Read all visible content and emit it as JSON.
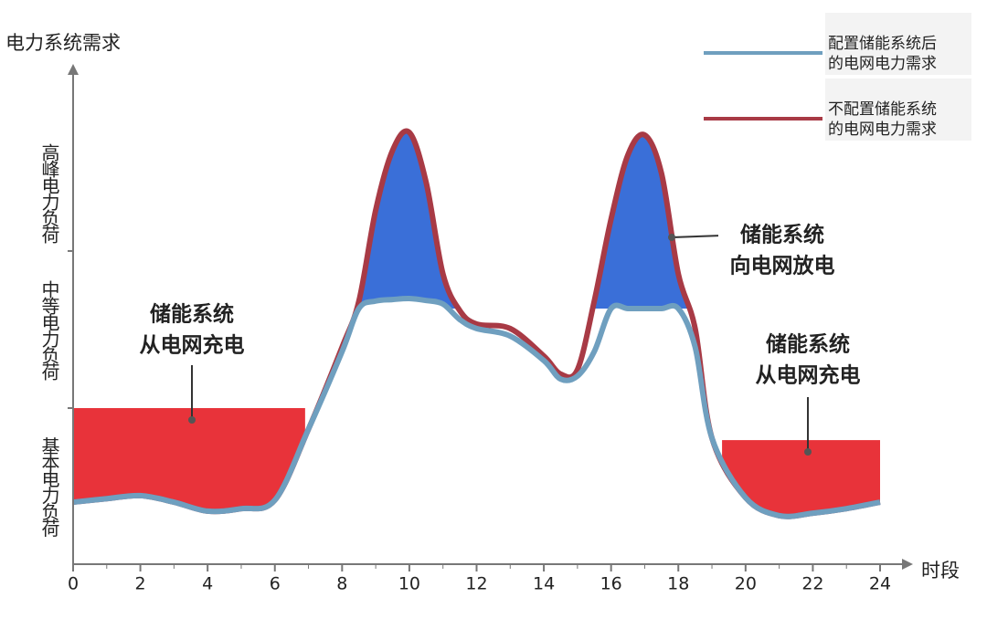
{
  "chart_data": {
    "type": "line",
    "y_label": "电力系统需求",
    "x_label": "时段",
    "x": [
      0,
      1,
      2,
      3,
      4,
      5,
      6,
      7,
      8,
      8.5,
      9,
      9.5,
      10,
      10.5,
      11,
      11.5,
      12,
      13,
      14,
      14.5,
      15,
      15.5,
      16,
      16.5,
      17,
      17.5,
      18,
      18.5,
      19,
      20,
      21,
      22,
      23,
      24
    ],
    "series": [
      {
        "name": "配置储能系统后的电网电力需求",
        "color": "#6f9fbf",
        "values": [
          12.4,
          13.1,
          13.7,
          12.4,
          10.6,
          11.1,
          12.8,
          27.0,
          42.5,
          51.1,
          52.6,
          52.9,
          53.1,
          52.7,
          52.0,
          48.9,
          47.1,
          45.6,
          40.7,
          37.0,
          37.6,
          42.5,
          51.1,
          51.1,
          51.1,
          51.1,
          51.1,
          43.4,
          25.2,
          13.3,
          9.7,
          10.2,
          11.1,
          12.4
        ]
      },
      {
        "name": "不配置储能系统的电网电力需求",
        "color": "#a83a45",
        "values": [
          12.4,
          13.1,
          13.7,
          12.4,
          10.6,
          11.1,
          12.8,
          27.0,
          43.4,
          52.6,
          70.8,
          82.7,
          86.3,
          76.3,
          58.0,
          50.7,
          48.0,
          47.1,
          41.6,
          38.0,
          38.9,
          52.6,
          69.0,
          81.8,
          85.8,
          78.1,
          58.0,
          47.1,
          25.2,
          13.3,
          9.7,
          10.2,
          11.1,
          12.4
        ]
      }
    ],
    "xlim": [
      0,
      24
    ],
    "xticks": [
      0,
      2,
      4,
      6,
      8,
      10,
      12,
      14,
      16,
      18,
      20,
      22,
      24
    ],
    "ylim": [
      0,
      100
    ],
    "band_bounds": [
      31.2,
      62.6
    ],
    "bands": [
      "基本电力负荷",
      "中等电力负荷",
      "高峰电力负荷"
    ],
    "charge_areas": [
      {
        "from": 0,
        "to": 6.9,
        "level": 31.2,
        "color": "#e8333a"
      },
      {
        "from": 19.3,
        "to": 24,
        "level": 24.8,
        "color": "#e8333a"
      }
    ],
    "discharge": {
      "level": 51.1,
      "color": "#3a6fd8"
    },
    "annotations": [
      [
        "储能系统",
        "从电网充电"
      ],
      [
        "储能系统",
        "向电网放电"
      ],
      [
        "储能系统",
        "从电网充电"
      ]
    ]
  }
}
